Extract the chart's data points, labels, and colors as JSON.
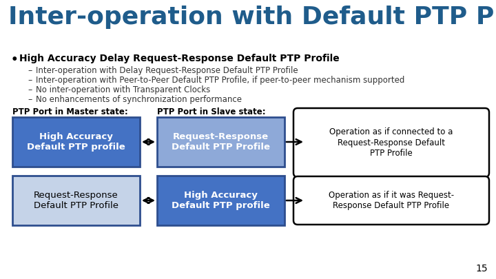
{
  "title": "Inter-operation with Default PTP Profiles",
  "title_color": "#1F5C8B",
  "title_fontsize": 26,
  "bg_color": "#FFFFFF",
  "bullet_text": "High Accuracy Delay Request-Response Default PTP Profile",
  "sub_bullets": [
    "Inter-operation with Delay Request-Response Default PTP Profile",
    "Inter-operation with Peer-to-Peer Default PTP Profile, if peer-to-peer mechanism supported",
    "No inter-operation with Transparent Clocks",
    "No enhancements of synchronization performance"
  ],
  "master_label": "PTP Port in Master state:",
  "slave_label": "PTP Port in Slave state:",
  "box_top_left_text": "High Accuracy\nDefault PTP profile",
  "box_top_right_text": "Request-Response\nDefault PTP Profile",
  "box_bot_left_text": "Request-Response\nDefault PTP Profile",
  "box_bot_right_text": "High Accuracy\nDefault PTP profile",
  "box_dark_color": "#4472C4",
  "box_light_color": "#8EA9D8",
  "box_light_gray_color": "#C5D3E8",
  "callout_top_text": "Operation as if connected to a\nRequest-Response Default\nPTP Profile",
  "callout_bot_text": "Operation as if it was Request-\nResponse Default PTP Profile",
  "page_number": "15"
}
